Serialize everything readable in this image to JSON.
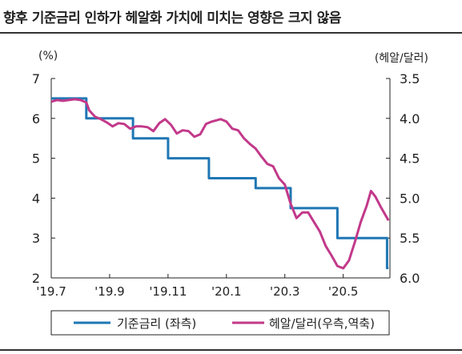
{
  "title": "향후 기준금리 인하가 헤알화 가치에 미치는 영향은 크지 않음",
  "colors": {
    "rate": "#1f77b4",
    "brl": "#c2398a",
    "axis": "#222222"
  },
  "chart_data": {
    "type": "line",
    "title": "향후 기준금리 인하가 헤알화 가치에 미치는 영향은 크지 않음",
    "y_left": {
      "label": "(%)",
      "ylim": [
        2,
        7
      ],
      "ticks": [
        2,
        3,
        4,
        5,
        6,
        7
      ]
    },
    "y_right": {
      "label": "(헤알/달러)",
      "ylim": [
        3.5,
        6.0
      ],
      "inverted": true,
      "ticks": [
        3.5,
        4.0,
        4.5,
        5.0,
        5.5,
        6.0
      ],
      "tick_labels": [
        "3.5",
        "4.0",
        "4.5",
        "5.0",
        "5.5",
        "6.0"
      ]
    },
    "x_ticks": [
      {
        "t": 0,
        "label": "'19.7"
      },
      {
        "t": 2,
        "label": "'19.9"
      },
      {
        "t": 4,
        "label": "'19.11"
      },
      {
        "t": 6,
        "label": "'20.1"
      },
      {
        "t": 8,
        "label": "'20.3"
      },
      {
        "t": 10,
        "label": "'20.5"
      }
    ],
    "x_range": [
      0,
      11.6
    ],
    "legend": {
      "placement": "bottom",
      "rate_label": "기준금리 (좌측)",
      "brl_label": "헤알/달러(우측,역축)"
    },
    "series": [
      {
        "name": "기준금리 (좌측)",
        "axis": "left",
        "step": true,
        "points": [
          [
            0,
            6.5
          ],
          [
            1.2,
            6.5
          ],
          [
            1.2,
            6.0
          ],
          [
            2.8,
            6.0
          ],
          [
            2.8,
            5.5
          ],
          [
            4.0,
            5.5
          ],
          [
            4.0,
            5.0
          ],
          [
            5.4,
            5.0
          ],
          [
            5.4,
            4.5
          ],
          [
            7.0,
            4.5
          ],
          [
            7.0,
            4.25
          ],
          [
            8.2,
            4.25
          ],
          [
            8.2,
            3.75
          ],
          [
            9.8,
            3.75
          ],
          [
            9.8,
            3.0
          ],
          [
            11.5,
            3.0
          ],
          [
            11.5,
            2.25
          ],
          [
            11.55,
            2.25
          ]
        ]
      },
      {
        "name": "헤알/달러(우측,역축)",
        "axis": "right",
        "points": [
          [
            0.0,
            3.79
          ],
          [
            0.2,
            3.77
          ],
          [
            0.4,
            3.78
          ],
          [
            0.6,
            3.77
          ],
          [
            0.8,
            3.76
          ],
          [
            1.0,
            3.77
          ],
          [
            1.2,
            3.8
          ],
          [
            1.3,
            3.9
          ],
          [
            1.5,
            3.98
          ],
          [
            1.7,
            4.01
          ],
          [
            1.9,
            4.05
          ],
          [
            2.1,
            4.1
          ],
          [
            2.3,
            4.06
          ],
          [
            2.5,
            4.07
          ],
          [
            2.7,
            4.13
          ],
          [
            2.9,
            4.1
          ],
          [
            3.1,
            4.1
          ],
          [
            3.3,
            4.11
          ],
          [
            3.5,
            4.16
          ],
          [
            3.7,
            4.06
          ],
          [
            3.9,
            4.01
          ],
          [
            4.1,
            4.08
          ],
          [
            4.3,
            4.19
          ],
          [
            4.5,
            4.15
          ],
          [
            4.7,
            4.16
          ],
          [
            4.9,
            4.23
          ],
          [
            5.1,
            4.2
          ],
          [
            5.3,
            4.07
          ],
          [
            5.5,
            4.04
          ],
          [
            5.8,
            4.01
          ],
          [
            6.0,
            4.04
          ],
          [
            6.2,
            4.13
          ],
          [
            6.4,
            4.15
          ],
          [
            6.6,
            4.25
          ],
          [
            6.8,
            4.32
          ],
          [
            7.0,
            4.38
          ],
          [
            7.2,
            4.48
          ],
          [
            7.4,
            4.57
          ],
          [
            7.6,
            4.6
          ],
          [
            7.8,
            4.75
          ],
          [
            8.0,
            4.83
          ],
          [
            8.2,
            5.07
          ],
          [
            8.4,
            5.25
          ],
          [
            8.6,
            5.18
          ],
          [
            8.8,
            5.18
          ],
          [
            9.0,
            5.3
          ],
          [
            9.2,
            5.42
          ],
          [
            9.4,
            5.6
          ],
          [
            9.6,
            5.72
          ],
          [
            9.8,
            5.85
          ],
          [
            10.0,
            5.88
          ],
          [
            10.2,
            5.78
          ],
          [
            10.4,
            5.55
          ],
          [
            10.6,
            5.3
          ],
          [
            10.8,
            5.1
          ],
          [
            10.95,
            4.91
          ],
          [
            11.1,
            4.98
          ],
          [
            11.3,
            5.12
          ],
          [
            11.55,
            5.28
          ]
        ]
      }
    ]
  }
}
